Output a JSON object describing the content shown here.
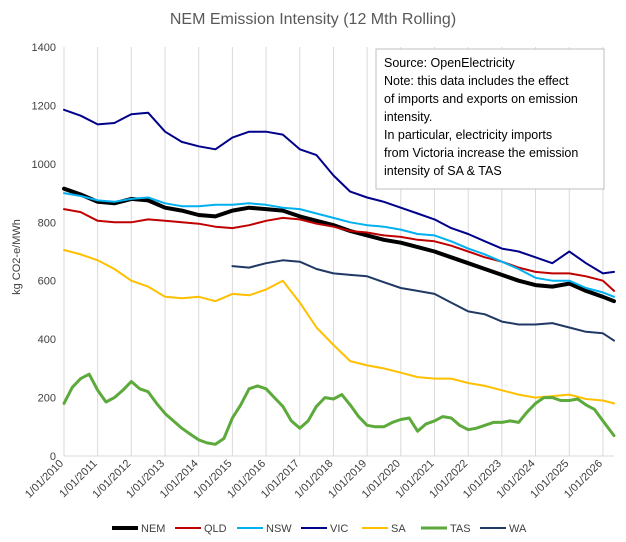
{
  "chart_data": {
    "type": "line",
    "title": "NEM Emission Intensity (12 Mth Rolling)",
    "ylabel": "kg CO2-e/MWh",
    "xlabel": "",
    "ylim": [
      0,
      1400
    ],
    "yticks": [
      "0",
      "200",
      "400",
      "600",
      "800",
      "1000",
      "1200",
      "1400"
    ],
    "xlim": [
      "2010-01-01",
      "2026-05-01"
    ],
    "xticks": [
      "1/01/2010",
      "1/01/2011",
      "1/01/2012",
      "1/01/2013",
      "1/01/2014",
      "1/01/2015",
      "1/01/2016",
      "1/01/2017",
      "1/01/2018",
      "1/01/2019",
      "1/01/2020",
      "1/01/2021",
      "1/01/2022",
      "1/01/2023",
      "1/01/2024",
      "1/01/2025",
      "1/01/2026"
    ],
    "grid": "vertical",
    "legend_position": "bottom",
    "annotation": [
      "Source: OpenElectricity",
      "Note: this data includes the effect",
      "of imports and exports on emission",
      "intensity.",
      "In particular, electricity imports",
      "from Victoria increase the emission",
      "intensity of SA & TAS"
    ],
    "series": [
      {
        "name": "NEM",
        "color": "#000000",
        "width": 4,
        "x": [
          "2010-01-01",
          "2010-07-01",
          "2011-01-01",
          "2011-07-01",
          "2012-01-01",
          "2012-07-01",
          "2013-01-01",
          "2013-07-01",
          "2014-01-01",
          "2014-07-01",
          "2015-01-01",
          "2015-07-01",
          "2016-01-01",
          "2016-07-01",
          "2017-01-01",
          "2017-07-01",
          "2018-01-01",
          "2018-07-01",
          "2019-01-01",
          "2019-07-01",
          "2020-01-01",
          "2020-07-01",
          "2021-01-01",
          "2021-07-01",
          "2022-01-01",
          "2022-07-01",
          "2023-01-01",
          "2023-07-01",
          "2024-01-01",
          "2024-07-01",
          "2025-01-01",
          "2025-07-01",
          "2026-01-01",
          "2026-05-01"
        ],
        "y": [
          915,
          895,
          870,
          865,
          880,
          875,
          850,
          840,
          825,
          820,
          840,
          850,
          845,
          840,
          820,
          805,
          790,
          770,
          755,
          740,
          730,
          715,
          700,
          680,
          660,
          640,
          620,
          600,
          585,
          580,
          590,
          565,
          545,
          530
        ]
      },
      {
        "name": "QLD",
        "color": "#C00000",
        "width": 2,
        "x": [
          "2010-01-01",
          "2010-07-01",
          "2011-01-01",
          "2011-07-01",
          "2012-01-01",
          "2012-07-01",
          "2013-01-01",
          "2013-07-01",
          "2014-01-01",
          "2014-07-01",
          "2015-01-01",
          "2015-07-01",
          "2016-01-01",
          "2016-07-01",
          "2017-01-01",
          "2017-07-01",
          "2018-01-01",
          "2018-07-01",
          "2019-01-01",
          "2019-07-01",
          "2020-01-01",
          "2020-07-01",
          "2021-01-01",
          "2021-07-01",
          "2022-01-01",
          "2022-07-01",
          "2023-01-01",
          "2023-07-01",
          "2024-01-01",
          "2024-07-01",
          "2025-01-01",
          "2025-07-01",
          "2026-01-01",
          "2026-05-01"
        ],
        "y": [
          845,
          835,
          805,
          800,
          800,
          810,
          805,
          800,
          795,
          785,
          780,
          790,
          805,
          815,
          810,
          795,
          785,
          770,
          765,
          755,
          750,
          740,
          735,
          720,
          700,
          680,
          665,
          645,
          630,
          625,
          625,
          615,
          600,
          565
        ]
      },
      {
        "name": "NSW",
        "color": "#00B0F0",
        "width": 2,
        "x": [
          "2010-01-01",
          "2010-07-01",
          "2011-01-01",
          "2011-07-01",
          "2012-01-01",
          "2012-07-01",
          "2013-01-01",
          "2013-07-01",
          "2014-01-01",
          "2014-07-01",
          "2015-01-01",
          "2015-07-01",
          "2016-01-01",
          "2016-07-01",
          "2017-01-01",
          "2017-07-01",
          "2018-01-01",
          "2018-07-01",
          "2019-01-01",
          "2019-07-01",
          "2020-01-01",
          "2020-07-01",
          "2021-01-01",
          "2021-07-01",
          "2022-01-01",
          "2022-07-01",
          "2023-01-01",
          "2023-07-01",
          "2024-01-01",
          "2024-07-01",
          "2025-01-01",
          "2025-07-01",
          "2026-01-01",
          "2026-05-01"
        ],
        "y": [
          900,
          890,
          875,
          870,
          880,
          885,
          865,
          855,
          855,
          860,
          860,
          865,
          860,
          850,
          845,
          830,
          815,
          800,
          790,
          785,
          775,
          760,
          755,
          735,
          710,
          690,
          665,
          640,
          610,
          600,
          600,
          575,
          560,
          545
        ]
      },
      {
        "name": "VIC",
        "color": "#00008B",
        "width": 2,
        "x": [
          "2010-01-01",
          "2010-07-01",
          "2011-01-01",
          "2011-07-01",
          "2012-01-01",
          "2012-07-01",
          "2013-01-01",
          "2013-07-01",
          "2014-01-01",
          "2014-07-01",
          "2015-01-01",
          "2015-07-01",
          "2016-01-01",
          "2016-07-01",
          "2017-01-01",
          "2017-07-01",
          "2018-01-01",
          "2018-07-01",
          "2019-01-01",
          "2019-07-01",
          "2020-01-01",
          "2020-07-01",
          "2021-01-01",
          "2021-07-01",
          "2022-01-01",
          "2022-07-01",
          "2023-01-01",
          "2023-07-01",
          "2024-01-01",
          "2024-07-01",
          "2025-01-01",
          "2025-07-01",
          "2026-01-01",
          "2026-05-01"
        ],
        "y": [
          1185,
          1165,
          1135,
          1140,
          1170,
          1175,
          1110,
          1075,
          1060,
          1050,
          1090,
          1110,
          1110,
          1100,
          1050,
          1030,
          960,
          905,
          885,
          870,
          850,
          830,
          810,
          780,
          760,
          735,
          710,
          700,
          680,
          660,
          700,
          660,
          625,
          630
        ]
      },
      {
        "name": "SA",
        "color": "#FFC000",
        "width": 2,
        "x": [
          "2010-01-01",
          "2010-07-01",
          "2011-01-01",
          "2011-07-01",
          "2012-01-01",
          "2012-07-01",
          "2013-01-01",
          "2013-07-01",
          "2014-01-01",
          "2014-07-01",
          "2015-01-01",
          "2015-07-01",
          "2016-01-01",
          "2016-07-01",
          "2017-01-01",
          "2017-07-01",
          "2018-01-01",
          "2018-07-01",
          "2019-01-01",
          "2019-07-01",
          "2020-01-01",
          "2020-07-01",
          "2021-01-01",
          "2021-07-01",
          "2022-01-01",
          "2022-07-01",
          "2023-01-01",
          "2023-07-01",
          "2024-01-01",
          "2024-07-01",
          "2025-01-01",
          "2025-07-01",
          "2026-01-01",
          "2026-05-01"
        ],
        "y": [
          705,
          690,
          670,
          640,
          600,
          580,
          545,
          540,
          545,
          530,
          555,
          550,
          570,
          600,
          525,
          440,
          380,
          325,
          310,
          300,
          285,
          270,
          265,
          265,
          250,
          240,
          225,
          210,
          200,
          205,
          210,
          195,
          190,
          180
        ]
      },
      {
        "name": "TAS",
        "color": "#5DAA3C",
        "width": 3,
        "x": [
          "2010-01-01",
          "2010-04-01",
          "2010-07-01",
          "2010-10-01",
          "2011-01-01",
          "2011-04-01",
          "2011-07-01",
          "2011-10-01",
          "2012-01-01",
          "2012-04-01",
          "2012-07-01",
          "2012-10-01",
          "2013-01-01",
          "2013-04-01",
          "2013-07-01",
          "2013-10-01",
          "2014-01-01",
          "2014-04-01",
          "2014-07-01",
          "2014-10-01",
          "2015-01-01",
          "2015-04-01",
          "2015-07-01",
          "2015-10-01",
          "2016-01-01",
          "2016-04-01",
          "2016-07-01",
          "2016-10-01",
          "2017-01-01",
          "2017-04-01",
          "2017-07-01",
          "2017-10-01",
          "2018-01-01",
          "2018-04-01",
          "2018-07-01",
          "2018-10-01",
          "2019-01-01",
          "2019-04-01",
          "2019-07-01",
          "2019-10-01",
          "2020-01-01",
          "2020-04-01",
          "2020-07-01",
          "2020-10-01",
          "2021-01-01",
          "2021-04-01",
          "2021-07-01",
          "2021-10-01",
          "2022-01-01",
          "2022-04-01",
          "2022-07-01",
          "2022-10-01",
          "2023-01-01",
          "2023-04-01",
          "2023-07-01",
          "2023-10-01",
          "2024-01-01",
          "2024-04-01",
          "2024-07-01",
          "2024-10-01",
          "2025-01-01",
          "2025-04-01",
          "2025-07-01",
          "2025-10-01",
          "2026-01-01",
          "2026-05-01"
        ],
        "y": [
          180,
          235,
          265,
          280,
          225,
          185,
          200,
          225,
          255,
          230,
          220,
          180,
          145,
          120,
          95,
          75,
          55,
          45,
          40,
          60,
          130,
          175,
          230,
          240,
          230,
          200,
          170,
          120,
          95,
          120,
          170,
          200,
          195,
          210,
          175,
          135,
          105,
          100,
          100,
          115,
          125,
          130,
          85,
          110,
          120,
          135,
          130,
          105,
          90,
          95,
          105,
          115,
          115,
          120,
          115,
          150,
          180,
          200,
          200,
          190,
          190,
          195,
          175,
          160,
          120,
          70
        ]
      },
      {
        "name": "WA",
        "color": "#1F3864",
        "width": 2,
        "x": [
          "2015-01-01",
          "2015-07-01",
          "2016-01-01",
          "2016-07-01",
          "2017-01-01",
          "2017-07-01",
          "2018-01-01",
          "2018-07-01",
          "2019-01-01",
          "2019-07-01",
          "2020-01-01",
          "2020-07-01",
          "2021-01-01",
          "2021-07-01",
          "2022-01-01",
          "2022-07-01",
          "2023-01-01",
          "2023-07-01",
          "2024-01-01",
          "2024-07-01",
          "2025-01-01",
          "2025-07-01",
          "2026-01-01",
          "2026-05-01"
        ],
        "y": [
          650,
          645,
          660,
          670,
          665,
          640,
          625,
          620,
          615,
          595,
          575,
          565,
          555,
          525,
          495,
          485,
          460,
          450,
          450,
          455,
          440,
          425,
          420,
          395
        ]
      }
    ]
  }
}
